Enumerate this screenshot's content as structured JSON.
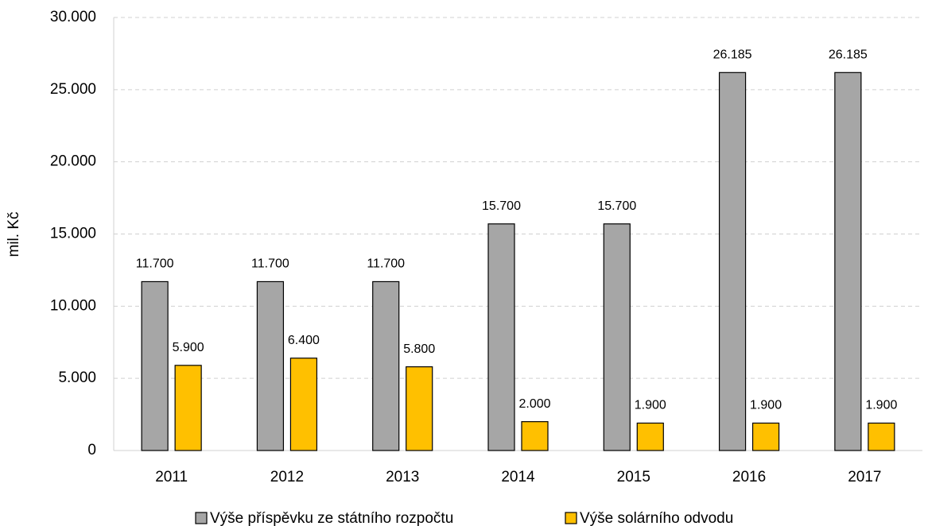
{
  "chart_data": {
    "type": "bar",
    "y_label": "mil. Kč",
    "categories": [
      "2011",
      "2012",
      "2013",
      "2014",
      "2015",
      "2016",
      "2017"
    ],
    "series": [
      {
        "name": "Výše příspěvku ze státního rozpočtu",
        "color": "#a6a6a6",
        "values": [
          11700,
          11700,
          11700,
          15700,
          15700,
          26185,
          26185
        ],
        "value_labels": [
          "11.700",
          "11.700",
          "11.700",
          "15.700",
          "15.700",
          "26.185",
          "26.185"
        ]
      },
      {
        "name": "Výše solárního odvodu",
        "color": "#ffc000",
        "values": [
          5900,
          6400,
          5800,
          2000,
          1900,
          1900,
          1900
        ],
        "value_labels": [
          "5.900",
          "6.400",
          "5.800",
          "2.000",
          "1.900",
          "1.900",
          "1.900"
        ]
      }
    ],
    "ylim": [
      0,
      30000
    ],
    "yticks": [
      0,
      {
        "value": 5000,
        "label": "5.000"
      },
      {
        "value": 10000,
        "label": "10.000"
      },
      {
        "value": 15000,
        "label": "15.000"
      },
      {
        "value": 20000,
        "label": "20.000"
      },
      {
        "value": 25000,
        "label": "25.000"
      },
      {
        "value": 30000,
        "label": "30.000"
      }
    ],
    "grid": true
  }
}
